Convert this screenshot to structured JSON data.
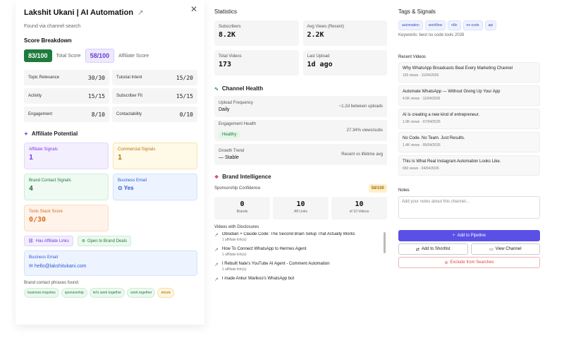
{
  "panel": {
    "title": "Lakshit Ukani | AI Automation",
    "source": "Found via channel search",
    "score_breakdown_label": "Score Breakdown",
    "total_score": "83/100",
    "total_score_label": "Total Score",
    "affiliate_score": "58/100",
    "affiliate_score_label": "Affiliate Score",
    "metrics": [
      {
        "label": "Topic Relevance",
        "value": "30/30"
      },
      {
        "label": "Tutorial Intent",
        "value": "15/20"
      },
      {
        "label": "Activity",
        "value": "15/15"
      },
      {
        "label": "Subscriber Fit",
        "value": "15/15"
      },
      {
        "label": "Engagement",
        "value": "8/10"
      },
      {
        "label": "Contactability",
        "value": "0/10"
      }
    ],
    "affiliate_potential_label": "Affiliate Potential",
    "cards": {
      "affiliate_signals": {
        "label": "Affiliate Signals",
        "value": "1"
      },
      "commercial_signals": {
        "label": "Commercial Signals",
        "value": "1"
      },
      "brand_contact": {
        "label": "Brand Contact Signals",
        "value": "4"
      },
      "business_email": {
        "label": "Business Email",
        "value": "Yes"
      },
      "tools_stack": {
        "label": "Tools Stack Score",
        "value": "0/30"
      }
    },
    "badges": [
      "Has Affiliate Links",
      "Open to Brand Deals"
    ],
    "business_email": {
      "label": "Business Email",
      "value": "hello@lakshitukani.com"
    },
    "phrases_label": "Brand contact phrases found:",
    "phrases": [
      "business inquiries",
      "sponsorship",
      "let's work together",
      "work together"
    ],
    "phrase_extra": "ebook"
  },
  "statistics": {
    "title": "Statistics",
    "items": [
      {
        "label": "Subscribers",
        "value": "8.2K"
      },
      {
        "label": "Avg Views (Recent)",
        "value": "2.2K"
      },
      {
        "label": "Total Videos",
        "value": "173"
      },
      {
        "label": "Last Upload",
        "value": "1d ago"
      }
    ]
  },
  "health": {
    "title": "Channel Health",
    "upload_label": "Upload Frequency",
    "upload_value": "Daily",
    "upload_right": "~1.2d between uploads",
    "engagement_label": "Engagement Health",
    "engagement_badge": "Healthy",
    "engagement_right": "27.34% views/subs",
    "growth_label": "Growth Trend",
    "growth_value": "Stable",
    "growth_right": "Recent vs lifetime avg"
  },
  "brand": {
    "title": "Brand Intelligence",
    "confidence_label": "Sponsorship Confidence",
    "confidence_value": "58/100",
    "stats": [
      {
        "value": "0",
        "label": "Brands"
      },
      {
        "value": "10",
        "label": "Aff Links"
      },
      {
        "value": "10",
        "label": "of 10 Videos"
      }
    ],
    "videos_label": "Videos with Disclosures",
    "videos": [
      {
        "title": "Obsidian + Claude Code: The Second Brain Setup That Actually Works",
        "sub": "1 affiliate link(s)"
      },
      {
        "title": "How To Connect WhatsApp to Hermes Agent",
        "sub": "1 affiliate link(s)"
      },
      {
        "title": "I Rebuilt Nate's YouTube AI Agent - Comment Automation",
        "sub": "1 affiliate link(s)"
      },
      {
        "title": "I made Ankur Warikoo's WhatsApp bot",
        "sub": ""
      }
    ]
  },
  "tags": {
    "title": "Tags & Signals",
    "chips": [
      "automation",
      "workflow",
      "n8n",
      "no-code",
      "api"
    ],
    "keywords": "Keywords: best no code tools 2026"
  },
  "recent": {
    "title": "Recent Videos",
    "items": [
      {
        "title": "Why WhatsApp Broadcasts Beat Every Marketing Channel",
        "meta": "193 views · 11/04/2026"
      },
      {
        "title": "Automate WhatsApp — Without Giving Up Your App",
        "meta": "4.6K views · 11/04/2026"
      },
      {
        "title": "AI is creating a new kind of entrepreneur.",
        "meta": "1.9K views · 07/04/2026"
      },
      {
        "title": "No Code. No Team. Just Results.",
        "meta": "1.4K views · 05/04/2026"
      },
      {
        "title": "This Is What Real Instagram Automation Looks Like.",
        "meta": "650 views · 04/04/2026"
      }
    ]
  },
  "notes": {
    "title": "Notes",
    "placeholder": "Add your notes about this channel..."
  },
  "actions": {
    "pipeline": "Add to Pipeline",
    "shortlist": "Add to Shortlist",
    "view": "View Channel",
    "exclude": "Exclude from Searches"
  }
}
